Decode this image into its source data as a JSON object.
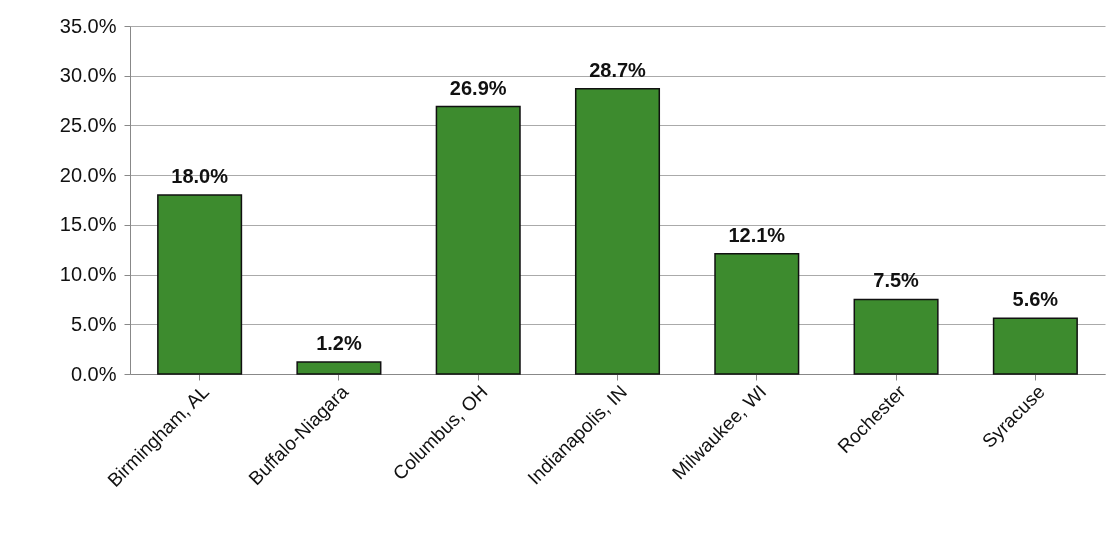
{
  "chart_data": {
    "type": "bar",
    "categories": [
      "Birmingham, AL",
      "Buffalo-Niagara",
      "Columbus, OH",
      "Indianapolis, IN",
      "Milwaukee, WI",
      "Rochester",
      "Syracuse"
    ],
    "values": [
      18.0,
      1.2,
      26.9,
      28.7,
      12.1,
      7.5,
      5.6
    ],
    "value_labels": [
      "18.0%",
      "1.2%",
      "26.9%",
      "28.7%",
      "12.1%",
      "7.5%",
      "5.6%"
    ],
    "color": "#3d8b2e",
    "ylim": [
      0,
      35
    ],
    "yticks": [
      {
        "value": 0,
        "label": "0.0%"
      },
      {
        "value": 5,
        "label": "5.0%"
      },
      {
        "value": 10,
        "label": "10.0%"
      },
      {
        "value": 15,
        "label": "15.0%"
      },
      {
        "value": 20,
        "label": "20.0%"
      },
      {
        "value": 25,
        "label": "25.0%"
      },
      {
        "value": 30,
        "label": "30.0%"
      },
      {
        "value": 35,
        "label": "35.0%"
      }
    ],
    "grid": "y"
  }
}
